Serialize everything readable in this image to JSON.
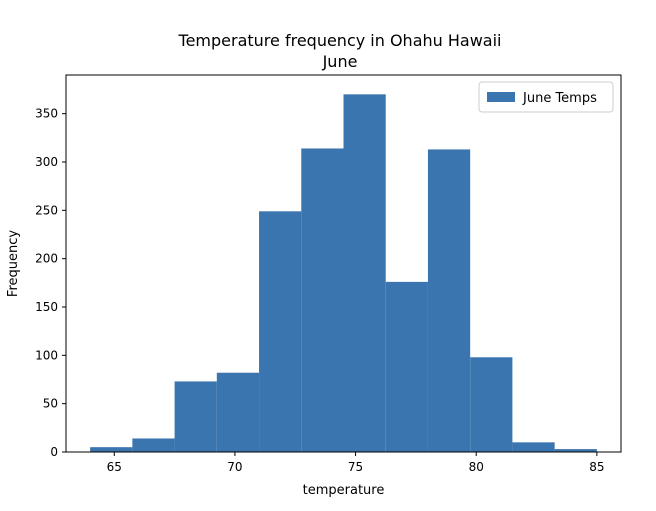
{
  "chart_data": {
    "type": "bar",
    "title": "Temperature frequency in Ohahu Hawaii",
    "subtitle": "June",
    "xlabel": "temperature",
    "ylabel": "Frequency",
    "xlim": [
      63,
      86
    ],
    "ylim": [
      0,
      390
    ],
    "xticks": [
      65,
      70,
      75,
      80,
      85
    ],
    "yticks": [
      0,
      50,
      100,
      150,
      200,
      250,
      300,
      350
    ],
    "bin_edges": [
      64.0,
      65.75,
      67.5,
      69.25,
      71.0,
      72.75,
      74.5,
      76.25,
      78.0,
      79.75,
      81.5,
      83.25,
      85.0
    ],
    "series": [
      {
        "name": "June Temps",
        "color": "#3b75af",
        "values": [
          5,
          14,
          73,
          82,
          249,
          314,
          370,
          176,
          313,
          98,
          10,
          3
        ]
      }
    ],
    "legend": {
      "position": "top-right"
    },
    "grid": false
  }
}
